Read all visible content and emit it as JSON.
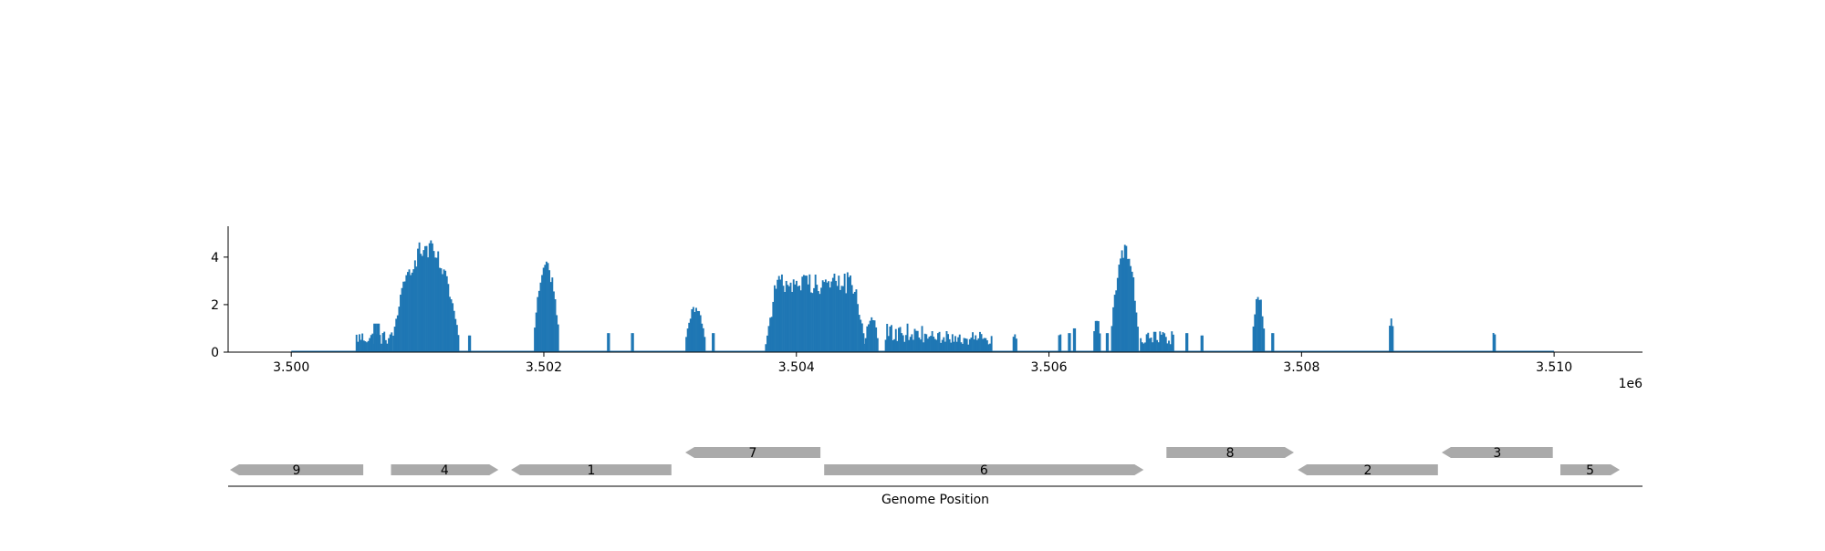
{
  "chart_data": [
    {
      "type": "bar",
      "title": "",
      "xlabel": "",
      "ylabel": "",
      "x_offset_label": "1e6",
      "xlim": [
        3499500,
        3510700
      ],
      "ylim": [
        0,
        5.3
      ],
      "xticks": [
        3500000,
        3502000,
        3504000,
        3506000,
        3508000,
        3510000
      ],
      "xtick_labels": [
        "3.500",
        "3.502",
        "3.504",
        "3.506",
        "3.508",
        "3.510"
      ],
      "yticks": [
        0,
        2,
        4
      ],
      "ytick_labels": [
        "0",
        "2",
        "4"
      ],
      "grid": false,
      "color": "#1f77b4",
      "baseline": [
        3500000,
        3510000
      ],
      "peaks": [
        {
          "start": 3500510,
          "end": 3500800,
          "level": 0.9,
          "type": "noise"
        },
        {
          "start": 3500650,
          "end": 3500700,
          "level": 1.2,
          "type": "spike"
        },
        {
          "start": 3500790,
          "end": 3501340,
          "level": 4.8,
          "type": "peak"
        },
        {
          "start": 3501400,
          "end": 3501420,
          "level": 0.7,
          "type": "spike"
        },
        {
          "start": 3501910,
          "end": 3502130,
          "level": 4.0,
          "type": "peak"
        },
        {
          "start": 3502500,
          "end": 3502520,
          "level": 0.8,
          "type": "spike"
        },
        {
          "start": 3502690,
          "end": 3502710,
          "level": 0.8,
          "type": "spike"
        },
        {
          "start": 3503110,
          "end": 3503290,
          "level": 2.0,
          "type": "peak"
        },
        {
          "start": 3503330,
          "end": 3503350,
          "level": 0.8,
          "type": "spike"
        },
        {
          "start": 3503740,
          "end": 3504560,
          "level": 3.4,
          "type": "broad"
        },
        {
          "start": 3504530,
          "end": 3504660,
          "level": 1.6,
          "type": "peak"
        },
        {
          "start": 3504700,
          "end": 3505000,
          "level": 1.2,
          "type": "noise"
        },
        {
          "start": 3505000,
          "end": 3505550,
          "level": 0.9,
          "type": "noise"
        },
        {
          "start": 3505700,
          "end": 3505760,
          "level": 0.9,
          "type": "peak"
        },
        {
          "start": 3506060,
          "end": 3506110,
          "level": 0.9,
          "type": "peak"
        },
        {
          "start": 3506150,
          "end": 3506170,
          "level": 0.8,
          "type": "spike"
        },
        {
          "start": 3506190,
          "end": 3506210,
          "level": 1.0,
          "type": "spike"
        },
        {
          "start": 3506340,
          "end": 3506420,
          "level": 1.5,
          "type": "peak"
        },
        {
          "start": 3506450,
          "end": 3506470,
          "level": 0.8,
          "type": "spike"
        },
        {
          "start": 3506480,
          "end": 3506720,
          "level": 4.6,
          "type": "peak"
        },
        {
          "start": 3506720,
          "end": 3506990,
          "level": 0.9,
          "type": "noise"
        },
        {
          "start": 3507080,
          "end": 3507100,
          "level": 0.8,
          "type": "spike"
        },
        {
          "start": 3507200,
          "end": 3507220,
          "level": 0.7,
          "type": "spike"
        },
        {
          "start": 3507600,
          "end": 3507720,
          "level": 2.5,
          "type": "peak"
        },
        {
          "start": 3507760,
          "end": 3507780,
          "level": 0.8,
          "type": "spike"
        },
        {
          "start": 3508680,
          "end": 3508740,
          "level": 1.7,
          "type": "peak"
        },
        {
          "start": 3509500,
          "end": 3509550,
          "level": 0.9,
          "type": "peak"
        }
      ]
    },
    {
      "type": "gene_track",
      "xlabel": "Genome Position",
      "color": "#aaaaaa",
      "genes": [
        {
          "label": "9",
          "start": 3499500,
          "end": 3500570,
          "strand": "-",
          "row": 0
        },
        {
          "label": "4",
          "start": 3500790,
          "end": 3501640,
          "strand": "+",
          "row": 0
        },
        {
          "label": "1",
          "start": 3501740,
          "end": 3503010,
          "strand": "-",
          "row": 0
        },
        {
          "label": "7",
          "start": 3503120,
          "end": 3504190,
          "strand": "-",
          "row": 1
        },
        {
          "label": "6",
          "start": 3504220,
          "end": 3506750,
          "strand": "+",
          "row": 0
        },
        {
          "label": "8",
          "start": 3506930,
          "end": 3507940,
          "strand": "+",
          "row": 1
        },
        {
          "label": "2",
          "start": 3507970,
          "end": 3509080,
          "strand": "-",
          "row": 0
        },
        {
          "label": "3",
          "start": 3509110,
          "end": 3509990,
          "strand": "-",
          "row": 1
        },
        {
          "label": "5",
          "start": 3510050,
          "end": 3510520,
          "strand": "+",
          "row": 0
        }
      ]
    }
  ]
}
